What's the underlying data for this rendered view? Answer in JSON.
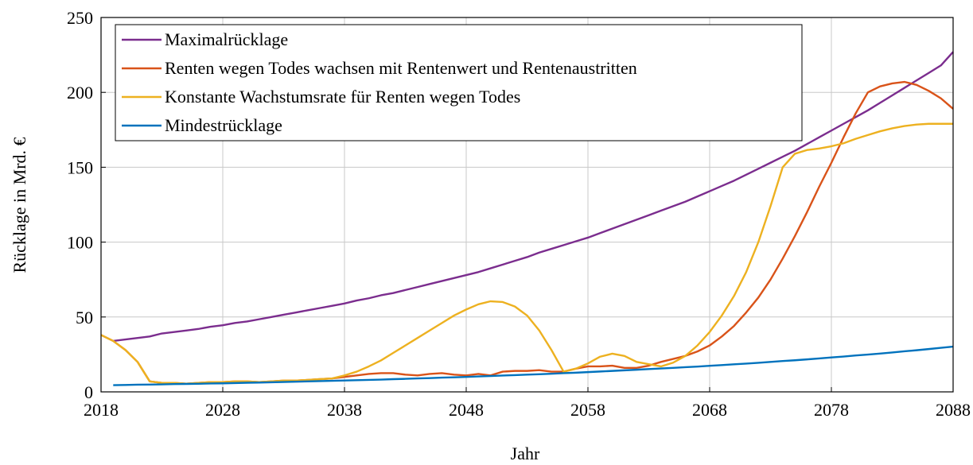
{
  "chart_data": {
    "type": "line",
    "xlabel": "Jahr",
    "ylabel": "Rücklage in Mrd. €",
    "x": [
      2018,
      2019,
      2020,
      2021,
      2022,
      2023,
      2024,
      2025,
      2026,
      2027,
      2028,
      2029,
      2030,
      2031,
      2032,
      2033,
      2034,
      2035,
      2036,
      2037,
      2038,
      2039,
      2040,
      2041,
      2042,
      2043,
      2044,
      2045,
      2046,
      2047,
      2048,
      2049,
      2050,
      2051,
      2052,
      2053,
      2054,
      2055,
      2056,
      2057,
      2058,
      2059,
      2060,
      2061,
      2062,
      2063,
      2064,
      2065,
      2066,
      2067,
      2068,
      2069,
      2070,
      2071,
      2072,
      2073,
      2074,
      2075,
      2076,
      2077,
      2078,
      2079,
      2080,
      2081,
      2082,
      2083,
      2084,
      2085,
      2086,
      2087,
      2088
    ],
    "series": [
      {
        "name": "Maximalrücklage",
        "color": "#7b2d8e",
        "values": [
          null,
          34,
          35,
          36,
          37,
          39,
          40,
          41,
          42,
          43.5,
          44.5,
          46,
          47,
          48.5,
          50,
          51.5,
          53,
          54.5,
          56,
          57.5,
          59,
          61,
          62.5,
          64.5,
          66,
          68,
          70,
          72,
          74,
          76,
          78,
          80,
          82.5,
          85,
          87.5,
          90,
          93,
          95.5,
          98,
          100.5,
          103,
          106,
          109,
          112,
          115,
          118,
          121,
          124,
          127,
          130.5,
          134,
          137.5,
          141,
          145,
          149,
          153,
          157,
          161,
          165.5,
          170,
          174.5,
          179,
          183.5,
          188,
          193,
          198,
          203,
          208,
          213,
          218,
          227
        ]
      },
      {
        "name": "Renten wegen Todes wachsen mit Rentenwert und Rentenaustritten",
        "color": "#d95319",
        "values": [
          38,
          34,
          28,
          20,
          7,
          6,
          6,
          5.5,
          6,
          6.5,
          6.5,
          7,
          7,
          6.5,
          7,
          7.5,
          7.5,
          8,
          8.5,
          9,
          10,
          11,
          12,
          12.5,
          12.5,
          11.5,
          11,
          12,
          12.5,
          11.5,
          11,
          12,
          11,
          13.5,
          14,
          14,
          14.5,
          13.5,
          13.5,
          15.5,
          17,
          17,
          17.5,
          16,
          16,
          17.5,
          20,
          22,
          24,
          27,
          31,
          37,
          44,
          53,
          63,
          75,
          89,
          104,
          120,
          137,
          153,
          170,
          186,
          200,
          204,
          206,
          207,
          205,
          201,
          196,
          189
        ]
      },
      {
        "name": "Konstante Wachstumsrate für Renten wegen Todes",
        "color": "#edb120",
        "values": [
          38,
          34,
          28,
          20,
          7,
          6,
          6,
          5.5,
          6,
          6.5,
          6.5,
          7,
          7,
          6.5,
          7,
          7.5,
          7.5,
          8,
          8.5,
          9,
          11,
          13.5,
          17,
          21,
          26,
          31,
          36,
          41,
          46,
          51,
          55,
          58.5,
          60.5,
          60,
          57,
          51,
          41,
          28,
          13.5,
          15.5,
          19,
          23.5,
          25.5,
          24,
          20,
          18.5,
          17,
          19.5,
          24,
          31,
          40,
          51,
          64,
          80,
          100,
          124,
          150,
          159,
          161.5,
          162.5,
          164,
          166,
          169,
          171.5,
          174,
          176,
          177.5,
          178.5,
          179,
          179,
          179
        ]
      },
      {
        "name": "Mindestrücklage",
        "color": "#0072bd",
        "values": [
          null,
          4.5,
          4.6,
          4.8,
          4.9,
          5.0,
          5.2,
          5.3,
          5.4,
          5.6,
          5.7,
          5.9,
          6.1,
          6.2,
          6.4,
          6.6,
          6.8,
          7.0,
          7.2,
          7.4,
          7.6,
          7.8,
          8.0,
          8.2,
          8.5,
          8.7,
          9.0,
          9.2,
          9.5,
          9.7,
          10.0,
          10.3,
          10.6,
          10.9,
          11.2,
          11.5,
          11.8,
          12.1,
          12.5,
          12.8,
          13.2,
          13.6,
          14.0,
          14.4,
          14.8,
          15.2,
          15.6,
          16.0,
          16.5,
          16.9,
          17.4,
          17.9,
          18.4,
          18.9,
          19.4,
          20.0,
          20.6,
          21.1,
          21.7,
          22.3,
          23.0,
          23.6,
          24.3,
          24.9,
          25.6,
          26.3,
          27.1,
          27.8,
          28.6,
          29.4,
          30.2
        ]
      }
    ],
    "xlim": [
      2018,
      2088
    ],
    "xticks": [
      2018,
      2028,
      2038,
      2048,
      2058,
      2068,
      2078,
      2088
    ],
    "ylim": [
      0,
      250
    ],
    "yticks": [
      0,
      50,
      100,
      150,
      200,
      250
    ],
    "grid": true,
    "legend": "top-left"
  }
}
